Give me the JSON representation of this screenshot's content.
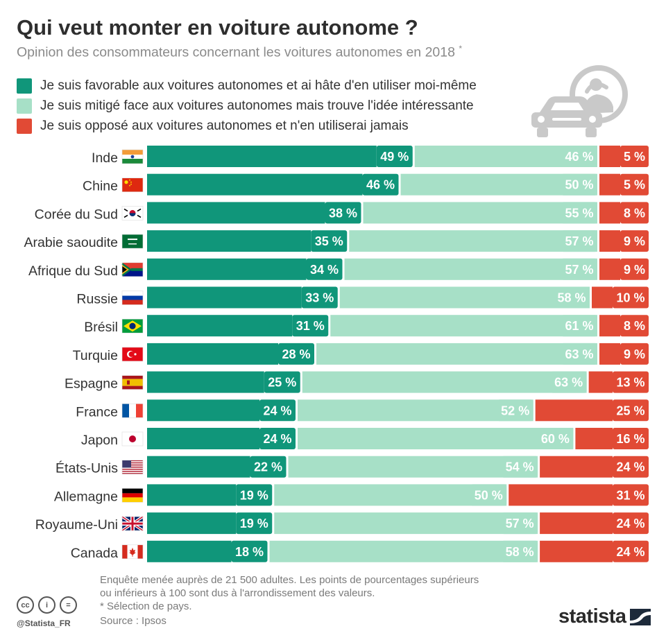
{
  "header": {
    "title": "Qui veut monter en voiture autonome ?",
    "subtitle": "Opinion des consommateurs concernant les voitures autonomes en 2018",
    "subtitle_mark": "*"
  },
  "colors": {
    "favorable": "#10967a",
    "mitige": "#a7e0c7",
    "oppose": "#e14a35"
  },
  "chart_data": {
    "type": "bar",
    "orientation": "horizontal",
    "stacked": true,
    "unit": "%",
    "categories": [
      "Inde",
      "Chine",
      "Corée du Sud",
      "Arabie saoudite",
      "Afrique du Sud",
      "Russie",
      "Brésil",
      "Turquie",
      "Espagne",
      "France",
      "Japon",
      "États-Unis",
      "Allemagne",
      "Royaume-Uni",
      "Canada"
    ],
    "series": [
      {
        "name": "Je suis favorable aux voitures autonomes et ai hâte d'en utiliser moi-même",
        "values": [
          49,
          46,
          38,
          35,
          34,
          33,
          31,
          28,
          25,
          24,
          24,
          22,
          19,
          19,
          18
        ]
      },
      {
        "name": "Je suis mitigé face aux voitures autonomes mais trouve l'idée intéressante",
        "values": [
          46,
          50,
          55,
          57,
          57,
          58,
          61,
          63,
          63,
          52,
          60,
          54,
          50,
          57,
          58
        ]
      },
      {
        "name": "Je suis opposé aux voitures autonomes et n'en utiliserai jamais",
        "values": [
          5,
          5,
          8,
          9,
          9,
          10,
          8,
          9,
          13,
          25,
          16,
          24,
          31,
          24,
          24
        ]
      }
    ],
    "flags": [
      "india-flag-icon",
      "china-flag-icon",
      "south-korea-flag-icon",
      "saudi-arabia-flag-icon",
      "south-africa-flag-icon",
      "russia-flag-icon",
      "brazil-flag-icon",
      "turkey-flag-icon",
      "spain-flag-icon",
      "france-flag-icon",
      "japan-flag-icon",
      "usa-flag-icon",
      "germany-flag-icon",
      "uk-flag-icon",
      "canada-flag-icon"
    ],
    "legend": "top-left",
    "grid": false
  },
  "footer": {
    "note_line1": "Enquête menée auprès de 21 500 adultes. Les points de pourcentages supérieurs",
    "note_line2": "ou inférieurs à 100 sont dus à l'arrondissement des valeurs.",
    "note_line3": "* Sélection de pays.",
    "source": "Source : Ipsos",
    "handle": "@Statista_FR",
    "brand": "statista",
    "license_icons": [
      "cc-icon",
      "by-icon",
      "nd-icon"
    ],
    "license_text": [
      "cc",
      "i",
      "="
    ]
  }
}
